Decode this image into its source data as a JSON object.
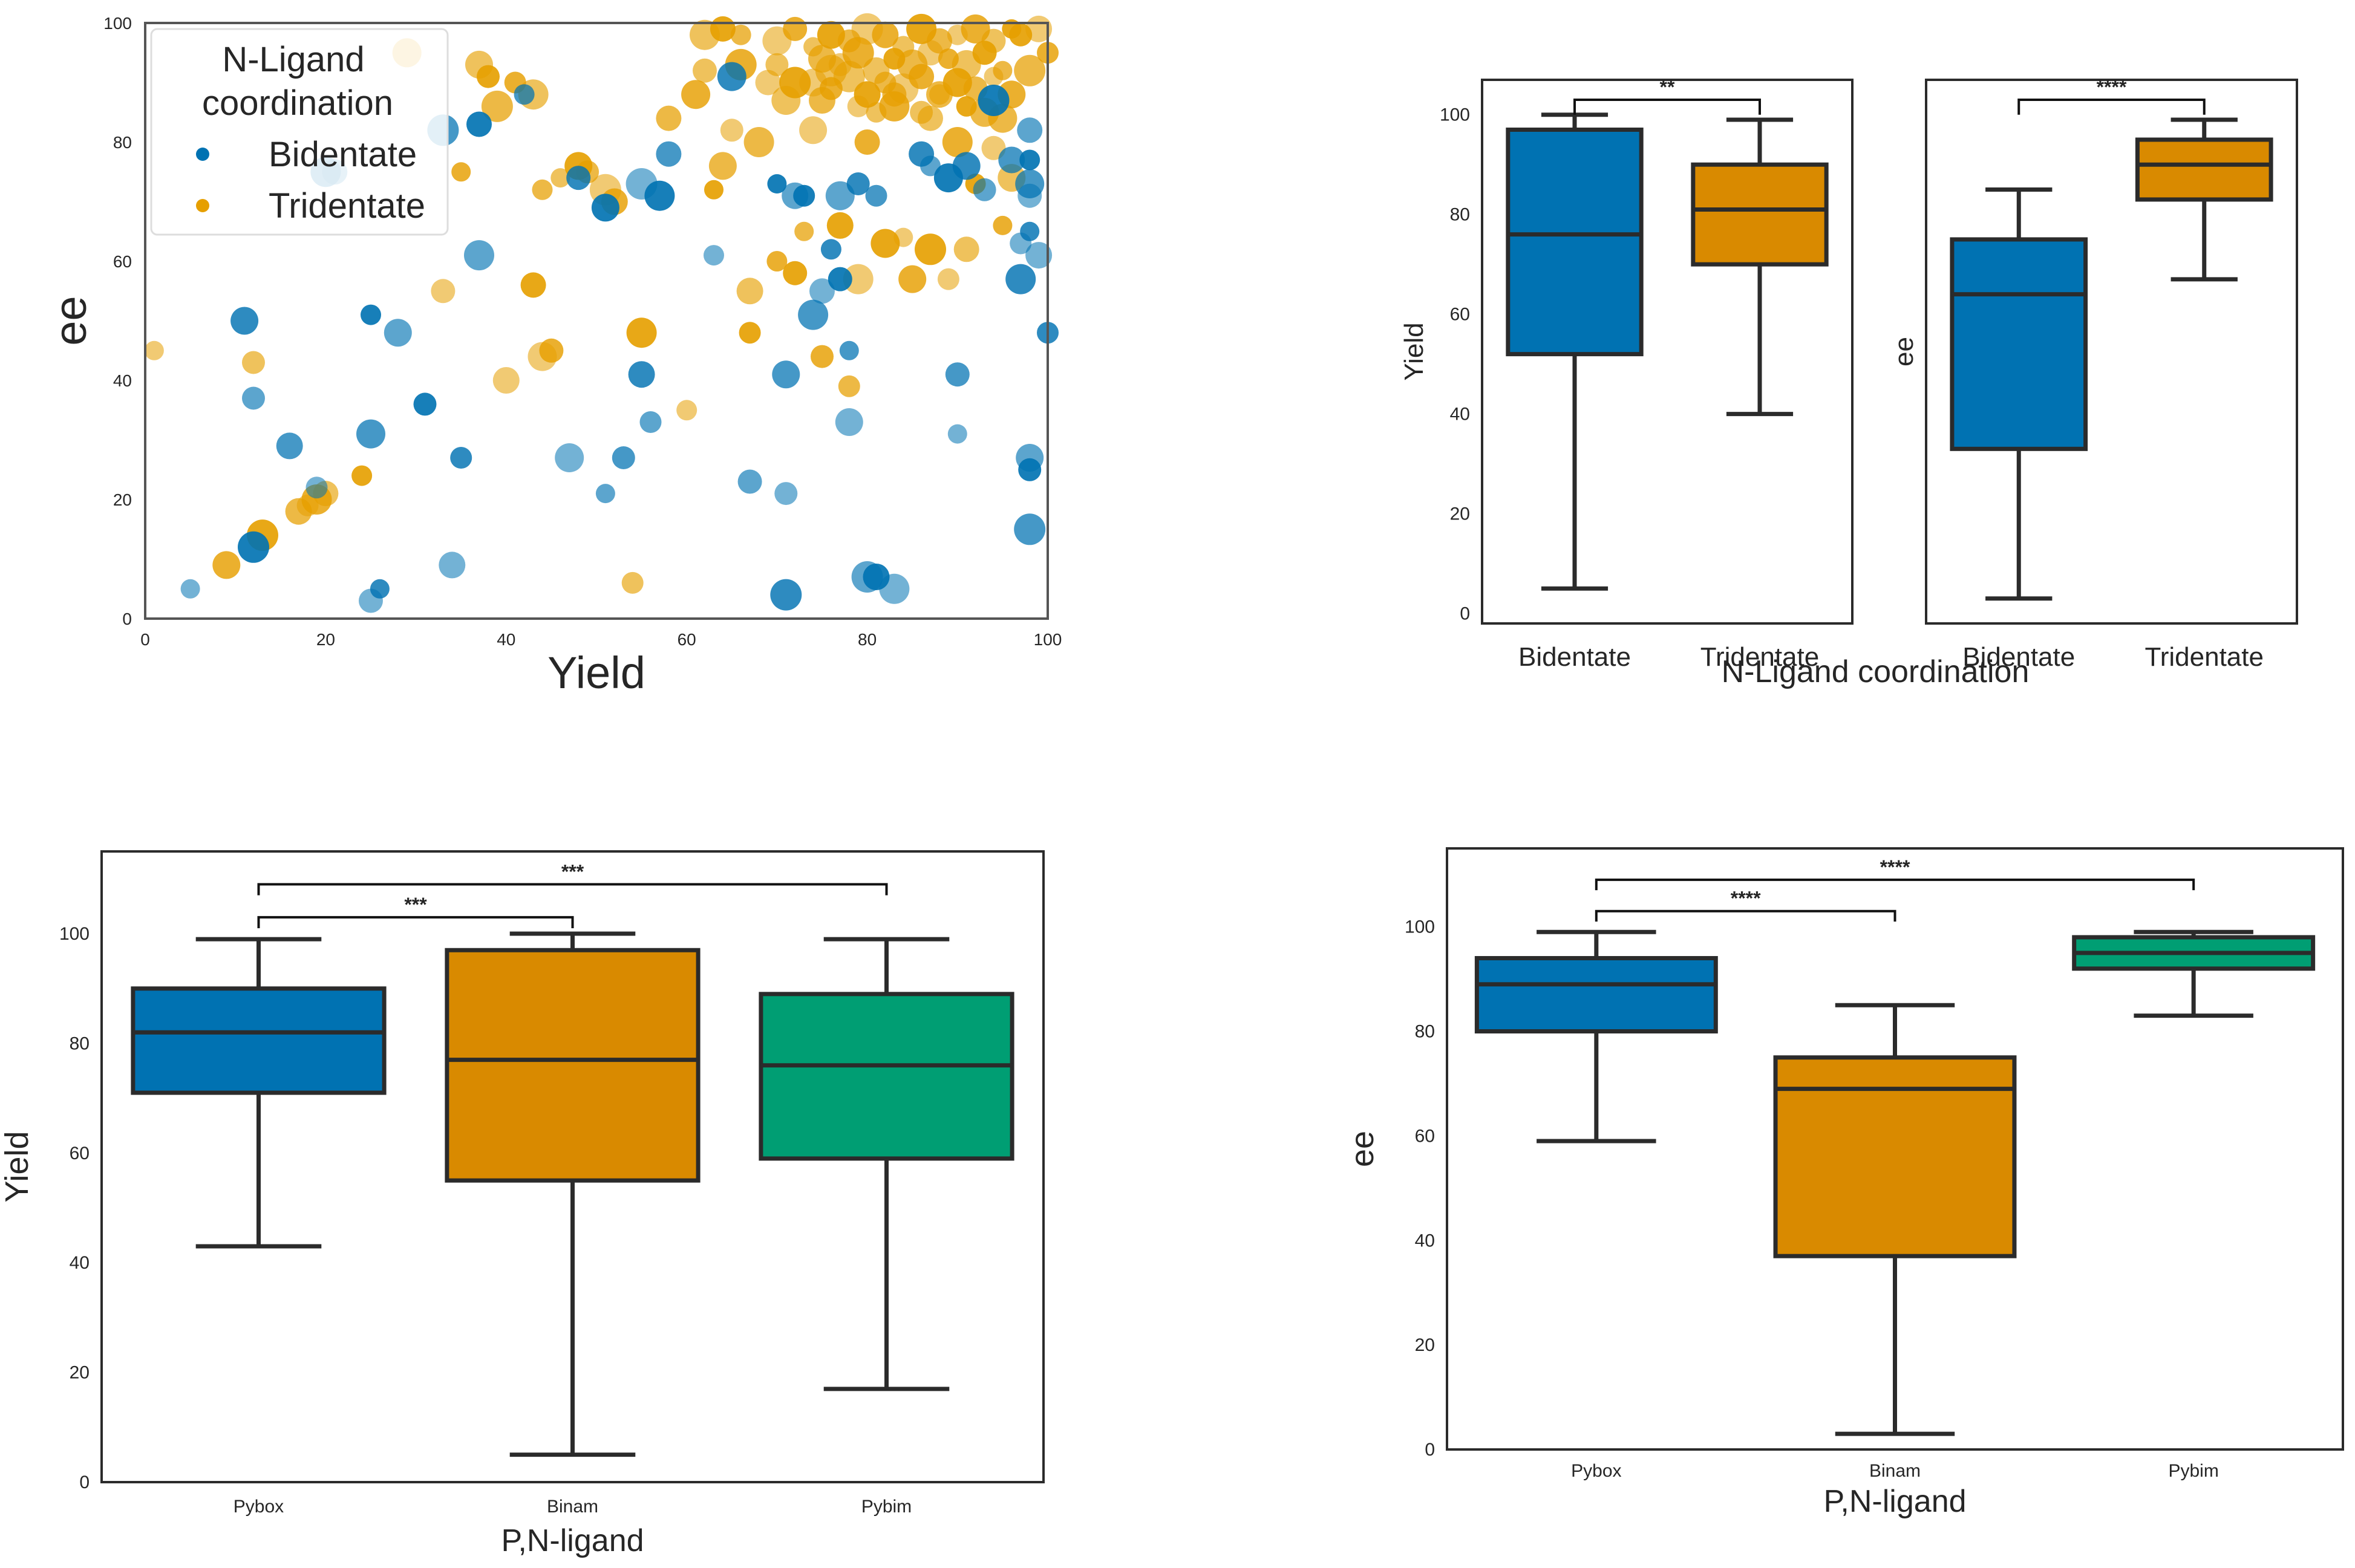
{
  "colors": {
    "blue": "#0072B2",
    "orange": "#E69F00",
    "boxOrange": "#D98A00",
    "green": "#009E73",
    "edge": "#2b2b2b",
    "frame": "#555555"
  },
  "chart_data": [
    {
      "id": "scatter",
      "type": "scatter",
      "title": "",
      "xlabel": "Yield",
      "ylabel": "ee",
      "xlim": [
        0,
        100
      ],
      "ylim": [
        0,
        100
      ],
      "xticks": [
        "0",
        "20",
        "40",
        "60",
        "80",
        "100"
      ],
      "yticks": [
        "0",
        "20",
        "40",
        "60",
        "80",
        "100"
      ],
      "grid": false,
      "legend": {
        "title_line1": "N-Ligand",
        "title_line2": "coordination",
        "placement": "top-left",
        "entries": [
          {
            "label": "Bidentate",
            "color": "#0072B2"
          },
          {
            "label": "Tridentate",
            "color": "#E69F00"
          }
        ]
      },
      "series": [
        {
          "name": "Bidentate",
          "color": "#0072B2",
          "points": [
            [
              5,
              5
            ],
            [
              11,
              50
            ],
            [
              12,
              37
            ],
            [
              12,
              12
            ],
            [
              16,
              29
            ],
            [
              19,
              22
            ],
            [
              20,
              75
            ],
            [
              21,
              75
            ],
            [
              25,
              51
            ],
            [
              25,
              31
            ],
            [
              25,
              3
            ],
            [
              26,
              5
            ],
            [
              28,
              48
            ],
            [
              31,
              36
            ],
            [
              33,
              82
            ],
            [
              34,
              9
            ],
            [
              35,
              27
            ],
            [
              37,
              61
            ],
            [
              37,
              83
            ],
            [
              42,
              88
            ],
            [
              47,
              27
            ],
            [
              48,
              74
            ],
            [
              51,
              21
            ],
            [
              51,
              69
            ],
            [
              53,
              27
            ],
            [
              55,
              73
            ],
            [
              55,
              41
            ],
            [
              56,
              33
            ],
            [
              57,
              71
            ],
            [
              58,
              78
            ],
            [
              63,
              61
            ],
            [
              65,
              91
            ],
            [
              67,
              23
            ],
            [
              70,
              73
            ],
            [
              71,
              41
            ],
            [
              71,
              21
            ],
            [
              71,
              4
            ],
            [
              72,
              71
            ],
            [
              73,
              71
            ],
            [
              74,
              51
            ],
            [
              75,
              55
            ],
            [
              76,
              62
            ],
            [
              77,
              71
            ],
            [
              77,
              57
            ],
            [
              78,
              45
            ],
            [
              78,
              33
            ],
            [
              79,
              73
            ],
            [
              80,
              7
            ],
            [
              81,
              7
            ],
            [
              81,
              71
            ],
            [
              83,
              5
            ],
            [
              86,
              78
            ],
            [
              87,
              76
            ],
            [
              89,
              74
            ],
            [
              90,
              41
            ],
            [
              90,
              31
            ],
            [
              91,
              76
            ],
            [
              93,
              72
            ],
            [
              94,
              87
            ],
            [
              96,
              77
            ],
            [
              97,
              63
            ],
            [
              97,
              57
            ],
            [
              98,
              82
            ],
            [
              98,
              77
            ],
            [
              98,
              73
            ],
            [
              98,
              71
            ],
            [
              98,
              65
            ],
            [
              98,
              27
            ],
            [
              98,
              25
            ],
            [
              98,
              15
            ],
            [
              99,
              61
            ],
            [
              100,
              48
            ]
          ]
        },
        {
          "name": "Tridentate",
          "color": "#E69F00",
          "points": [
            [
              1,
              45
            ],
            [
              9,
              9
            ],
            [
              12,
              43
            ],
            [
              13,
              14
            ],
            [
              17,
              18
            ],
            [
              18,
              19
            ],
            [
              19,
              20
            ],
            [
              20,
              21
            ],
            [
              24,
              24
            ],
            [
              29,
              95
            ],
            [
              33,
              55
            ],
            [
              35,
              75
            ],
            [
              37,
              93
            ],
            [
              38,
              91
            ],
            [
              39,
              86
            ],
            [
              40,
              40
            ],
            [
              41,
              90
            ],
            [
              43,
              88
            ],
            [
              43,
              56
            ],
            [
              44,
              72
            ],
            [
              44,
              44
            ],
            [
              45,
              45
            ],
            [
              46,
              74
            ],
            [
              48,
              76
            ],
            [
              49,
              75
            ],
            [
              51,
              72
            ],
            [
              52,
              70
            ],
            [
              54,
              6
            ],
            [
              55,
              48
            ],
            [
              58,
              84
            ],
            [
              60,
              35
            ],
            [
              61,
              88
            ],
            [
              62,
              92
            ],
            [
              63,
              72
            ],
            [
              64,
              76
            ],
            [
              65,
              82
            ],
            [
              66,
              93
            ],
            [
              67,
              55
            ],
            [
              67,
              48
            ],
            [
              68,
              80
            ],
            [
              69,
              90
            ],
            [
              70,
              60
            ],
            [
              71,
              87
            ],
            [
              72,
              58
            ],
            [
              73,
              65
            ],
            [
              74,
              82
            ],
            [
              75,
              44
            ],
            [
              76,
              92
            ],
            [
              77,
              66
            ],
            [
              78,
              39
            ],
            [
              79,
              57
            ],
            [
              80,
              80
            ],
            [
              81,
              85
            ],
            [
              82,
              63
            ],
            [
              83,
              88
            ],
            [
              84,
              64
            ],
            [
              85,
              57
            ],
            [
              86,
              85
            ],
            [
              87,
              62
            ],
            [
              88,
              88
            ],
            [
              89,
              57
            ],
            [
              90,
              80
            ],
            [
              91,
              62
            ],
            [
              92,
              73
            ],
            [
              93,
              85
            ],
            [
              94,
              79
            ],
            [
              95,
              66
            ],
            [
              96,
              74
            ],
            [
              97,
              98
            ],
            [
              98,
              92
            ],
            [
              99,
              99
            ],
            [
              100,
              95
            ],
            [
              62,
              98
            ],
            [
              64,
              99
            ],
            [
              66,
              98
            ],
            [
              70,
              97
            ],
            [
              72,
              99
            ],
            [
              74,
              96
            ],
            [
              76,
              98
            ],
            [
              78,
              97
            ],
            [
              80,
              99
            ],
            [
              82,
              98
            ],
            [
              84,
              96
            ],
            [
              86,
              99
            ],
            [
              88,
              97
            ],
            [
              90,
              98
            ],
            [
              92,
              99
            ],
            [
              94,
              97
            ],
            [
              96,
              99
            ],
            [
              75,
              94
            ],
            [
              77,
              93
            ],
            [
              79,
              95
            ],
            [
              81,
              92
            ],
            [
              83,
              94
            ],
            [
              85,
              93
            ],
            [
              87,
              95
            ],
            [
              89,
              94
            ],
            [
              91,
              93
            ],
            [
              93,
              95
            ],
            [
              95,
              92
            ],
            [
              74,
              90
            ],
            [
              76,
              89
            ],
            [
              78,
              91
            ],
            [
              80,
              88
            ],
            [
              82,
              90
            ],
            [
              84,
              89
            ],
            [
              86,
              91
            ],
            [
              88,
              88
            ],
            [
              90,
              90
            ],
            [
              92,
              89
            ],
            [
              94,
              91
            ],
            [
              96,
              88
            ],
            [
              70,
              93
            ],
            [
              72,
              90
            ],
            [
              75,
              87
            ],
            [
              79,
              86
            ],
            [
              83,
              86
            ],
            [
              87,
              84
            ],
            [
              91,
              86
            ],
            [
              95,
              84
            ]
          ]
        }
      ]
    },
    {
      "id": "nlig_yield",
      "type": "box",
      "ylabel": "Yield",
      "ylim": [
        -2,
        107
      ],
      "yticks": [
        "0",
        "20",
        "40",
        "60",
        "80",
        "100"
      ],
      "categories": [
        "Bidentate",
        "Tridentate"
      ],
      "boxes": [
        {
          "name": "Bidentate",
          "color": "#0072B2",
          "whislo": 5,
          "q1": 52,
          "med": 76,
          "q3": 97,
          "whishi": 100
        },
        {
          "name": "Tridentate",
          "color": "#D98A00",
          "whislo": 40,
          "q1": 70,
          "med": 81,
          "q3": 90,
          "whishi": 99
        }
      ],
      "annotations": [
        {
          "from": 0,
          "to": 1,
          "level": 103,
          "tick_end": 100,
          "label": "**"
        }
      ]
    },
    {
      "id": "nlig_ee",
      "type": "box",
      "ylabel": "ee",
      "ylim": [
        -2,
        107
      ],
      "yticks": [],
      "categories": [
        "Bidentate",
        "Tridentate"
      ],
      "shared_xlabel": "N-Ligand coordination",
      "boxes": [
        {
          "name": "Bidentate",
          "color": "#0072B2",
          "whislo": 3,
          "q1": 33,
          "med": 64,
          "q3": 75,
          "whishi": 85
        },
        {
          "name": "Tridentate",
          "color": "#D98A00",
          "whislo": 67,
          "q1": 83,
          "med": 90,
          "q3": 95,
          "whishi": 99
        }
      ],
      "annotations": [
        {
          "from": 0,
          "to": 1,
          "level": 103,
          "tick_end": 100,
          "label": "****"
        }
      ]
    },
    {
      "id": "pn_yield",
      "type": "box",
      "xlabel": "P,N-ligand",
      "ylabel": "Yield",
      "ylim": [
        0,
        115
      ],
      "yticks": [
        "0",
        "20",
        "40",
        "60",
        "80",
        "100"
      ],
      "categories": [
        "Pybox",
        "Binam",
        "Pybim"
      ],
      "boxes": [
        {
          "name": "Pybox",
          "color": "#0072B2",
          "whislo": 43,
          "q1": 71,
          "med": 82,
          "q3": 90,
          "whishi": 99
        },
        {
          "name": "Binam",
          "color": "#D98A00",
          "whislo": 5,
          "q1": 55,
          "med": 77,
          "q3": 97,
          "whishi": 100
        },
        {
          "name": "Pybim",
          "color": "#009E73",
          "whislo": 17,
          "q1": 59,
          "med": 76,
          "q3": 89,
          "whishi": 99
        }
      ],
      "annotations": [
        {
          "from": 0,
          "to": 1,
          "level": 103,
          "tick_end": 101,
          "label": "***"
        },
        {
          "from": 0,
          "to": 2,
          "level": 109,
          "tick_end": 107,
          "label": "***"
        }
      ]
    },
    {
      "id": "pn_ee",
      "type": "box",
      "xlabel": "P,N-ligand",
      "ylabel": "ee",
      "ylim": [
        0,
        115
      ],
      "yticks": [
        "0",
        "20",
        "40",
        "60",
        "80",
        "100"
      ],
      "categories": [
        "Pybox",
        "Binam",
        "Pybim"
      ],
      "boxes": [
        {
          "name": "Pybox",
          "color": "#0072B2",
          "whislo": 59,
          "q1": 80,
          "med": 89,
          "q3": 94,
          "whishi": 99
        },
        {
          "name": "Binam",
          "color": "#D98A00",
          "whislo": 3,
          "q1": 37,
          "med": 69,
          "q3": 75,
          "whishi": 85
        },
        {
          "name": "Pybim",
          "color": "#009E73",
          "whislo": 83,
          "q1": 92,
          "med": 95,
          "q3": 98,
          "whishi": 99
        }
      ],
      "annotations": [
        {
          "from": 0,
          "to": 1,
          "level": 103,
          "tick_end": 101,
          "label": "****"
        },
        {
          "from": 0,
          "to": 2,
          "level": 109,
          "tick_end": 107,
          "label": "****"
        }
      ]
    }
  ]
}
